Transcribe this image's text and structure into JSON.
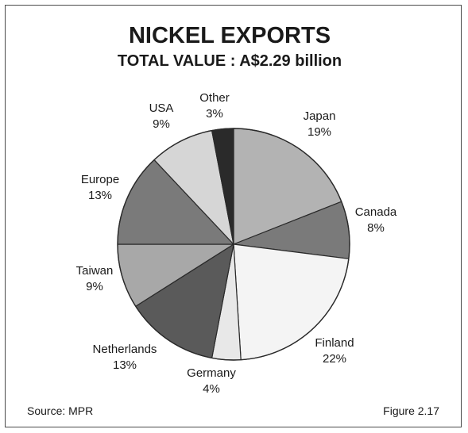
{
  "footer": {
    "source": "Source:  MPR",
    "figure": "Figure 2.17"
  },
  "chart_data": {
    "type": "pie",
    "title": "NICKEL EXPORTS",
    "subtitle": "TOTAL VALUE : A$2.29 billion",
    "legend": "none",
    "slices": [
      {
        "label": "Japan",
        "value": 19,
        "value_label": "19%",
        "color": "#b3b3b3"
      },
      {
        "label": "Canada",
        "value": 8,
        "value_label": "8%",
        "color": "#7a7a7a"
      },
      {
        "label": "Finland",
        "value": 22,
        "value_label": "22%",
        "color": "#f4f4f4"
      },
      {
        "label": "Germany",
        "value": 4,
        "value_label": "4%",
        "color": "#e8e8e8"
      },
      {
        "label": "Netherlands",
        "value": 13,
        "value_label": "13%",
        "color": "#5a5a5a"
      },
      {
        "label": "Taiwan",
        "value": 9,
        "value_label": "9%",
        "color": "#a8a8a8"
      },
      {
        "label": "Europe",
        "value": 13,
        "value_label": "13%",
        "color": "#7a7a7a"
      },
      {
        "label": "USA",
        "value": 9,
        "value_label": "9%",
        "color": "#d6d6d6"
      },
      {
        "label": "Other",
        "value": 3,
        "value_label": "3%",
        "color": "#2a2a2a"
      }
    ]
  }
}
